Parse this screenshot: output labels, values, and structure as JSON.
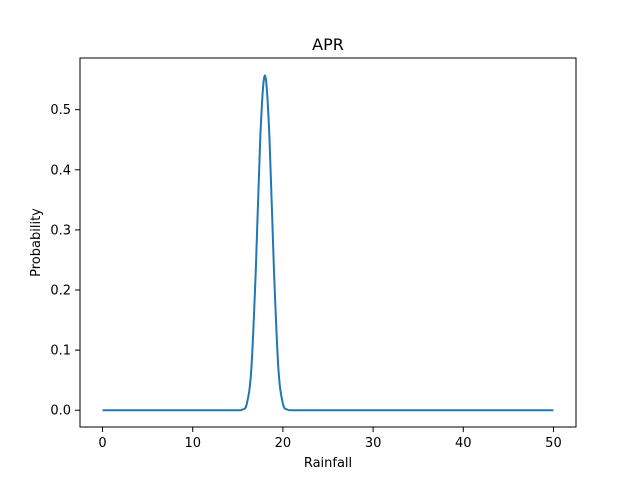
{
  "chart_data": {
    "type": "line",
    "title": "APR",
    "xlabel": "Rainfall",
    "ylabel": "Probability",
    "xlim": [
      -2.5,
      52.5
    ],
    "ylim": [
      -0.0279,
      0.586
    ],
    "xticks": [
      0,
      10,
      20,
      30,
      40,
      50
    ],
    "xtick_labels": [
      "0",
      "10",
      "20",
      "30",
      "40",
      "50"
    ],
    "yticks": [
      0.0,
      0.1,
      0.2,
      0.3,
      0.4,
      0.5
    ],
    "ytick_labels": [
      "0.0",
      "0.1",
      "0.2",
      "0.3",
      "0.4",
      "0.5"
    ],
    "grid": false,
    "legend": "none",
    "series": [
      {
        "color": "#1f77b4",
        "x": [
          0,
          10,
          14,
          15,
          15.5,
          16,
          16.5,
          17,
          17.5,
          18,
          18.5,
          19,
          19.5,
          20,
          20.5,
          21,
          22,
          30,
          40,
          50
        ],
        "y": [
          0.0,
          0.0,
          0.0,
          0.0,
          0.001,
          0.011,
          0.069,
          0.236,
          0.457,
          0.557,
          0.457,
          0.236,
          0.069,
          0.011,
          0.001,
          0.0,
          0.0,
          0.0,
          0.0,
          0.0
        ]
      }
    ]
  }
}
